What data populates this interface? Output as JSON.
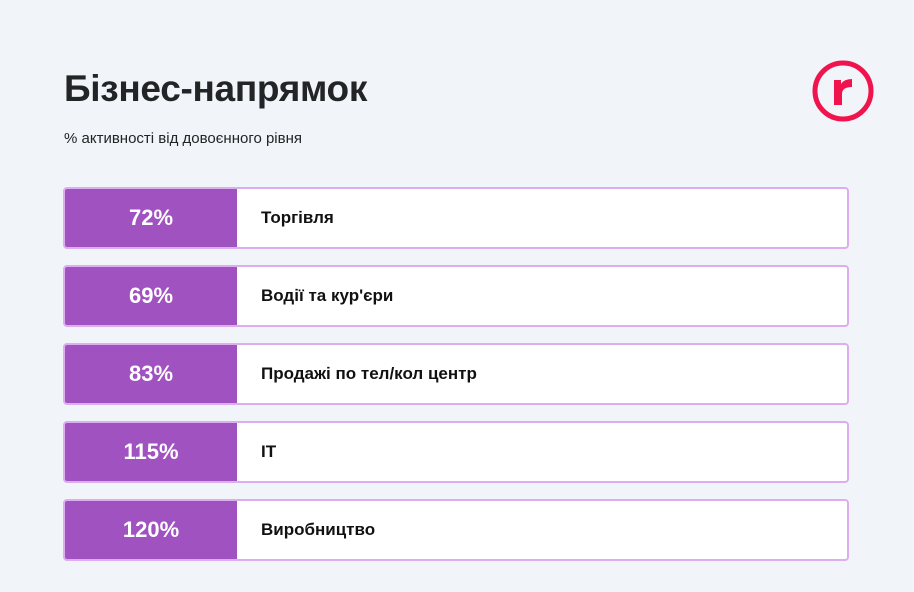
{
  "title": "Бізнес-напрямок",
  "subtitle": "% активності від довоєнного рівня",
  "logo": {
    "letter": "r",
    "color": "#f0134d"
  },
  "colors": {
    "accent": "#a052c0",
    "border": "#dcaef0",
    "background": "#f1f4f8"
  },
  "chart_data": {
    "type": "table",
    "title": "Бізнес-напрямок",
    "subtitle": "% активності від довоєнного рівня",
    "rows": [
      {
        "value": "72%",
        "label": "Торгівля"
      },
      {
        "value": "69%",
        "label": "Водії та кур'єри"
      },
      {
        "value": "83%",
        "label": "Продажі по тел/кол центр"
      },
      {
        "value": "115%",
        "label": "IT"
      },
      {
        "value": "120%",
        "label": "Виробництво"
      }
    ]
  }
}
